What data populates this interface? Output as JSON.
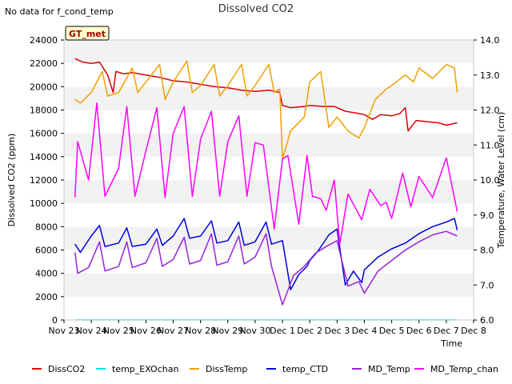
{
  "title": "Dissolved CO2",
  "note": "No data for f_cond_temp",
  "badge": "GT_met",
  "chart_data": {
    "type": "line",
    "title": "Dissolved CO2",
    "xlabel": "Time",
    "ylabel": "Dissolved CO2 (ppm)",
    "y2label": "Temperature, Water Level (cm)",
    "x_ticks": [
      "Nov 23",
      "Nov 24",
      "Nov 25",
      "Nov 26",
      "Nov 27",
      "Nov 28",
      "Nov 29",
      "Nov 30",
      "Dec 1",
      "Dec 2",
      "Dec 3",
      "Dec 4",
      "Dec 5",
      "Dec 6",
      "Dec 7",
      "Dec 8"
    ],
    "xlim": [
      0,
      15
    ],
    "ylim": [
      0,
      24000
    ],
    "y_ticks": [
      0,
      2000,
      4000,
      6000,
      8000,
      10000,
      12000,
      14000,
      16000,
      18000,
      20000,
      22000,
      24000
    ],
    "y2lim": [
      6.0,
      14.0
    ],
    "y2_ticks": [
      "6.0",
      "7.0",
      "8.0",
      "9.0",
      "10.0",
      "11.0",
      "12.0",
      "13.0",
      "14.0"
    ],
    "grid": "horizontal bands",
    "legend_position": "bottom",
    "series": [
      {
        "name": "DissCO2",
        "axis": "left",
        "color": "#dd0000",
        "x": [
          0.4,
          0.7,
          1.0,
          1.3,
          1.6,
          1.8,
          1.9,
          2.2,
          2.5,
          3.0,
          3.5,
          4.0,
          4.5,
          5.0,
          5.5,
          6.0,
          6.5,
          7.0,
          7.5,
          7.9,
          8.0,
          8.3,
          8.8,
          9.0,
          9.5,
          9.9,
          10.3,
          10.8,
          11.0,
          11.3,
          11.6,
          12.0,
          12.3,
          12.5,
          12.6,
          12.9,
          13.3,
          13.7,
          14.0,
          14.4
        ],
        "y": [
          22400,
          22100,
          22000,
          22100,
          21000,
          19500,
          21300,
          21100,
          21200,
          21000,
          20800,
          20500,
          20400,
          20200,
          20000,
          19900,
          19700,
          19600,
          19700,
          19500,
          18400,
          18200,
          18300,
          18400,
          18300,
          18300,
          17900,
          17700,
          17600,
          17200,
          17600,
          17500,
          17700,
          18200,
          16200,
          17100,
          17000,
          16900,
          16700,
          16900
        ]
      },
      {
        "name": "temp_EXOchan",
        "axis": "left",
        "color": "#00e5e5",
        "x": [
          0.4,
          14.4
        ],
        "y": [
          10,
          10
        ]
      },
      {
        "name": "DissTemp",
        "axis": "right",
        "color": "#f0a000",
        "x": [
          0.4,
          0.6,
          1.0,
          1.4,
          1.6,
          2.0,
          2.5,
          2.7,
          3.0,
          3.5,
          3.7,
          4.0,
          4.5,
          4.7,
          5.0,
          5.5,
          5.7,
          6.0,
          6.5,
          6.7,
          7.0,
          7.5,
          7.7,
          7.9,
          8.0,
          8.3,
          8.8,
          9.0,
          9.4,
          9.7,
          10.0,
          10.4,
          10.8,
          11.0,
          11.4,
          11.8,
          12.0,
          12.5,
          12.8,
          13.0,
          13.5,
          14.0,
          14.3,
          14.4
        ],
        "y": [
          12.3,
          12.2,
          12.5,
          13.1,
          12.4,
          12.5,
          13.2,
          12.5,
          12.8,
          13.3,
          12.3,
          12.8,
          13.4,
          12.5,
          12.7,
          13.3,
          12.4,
          12.7,
          13.3,
          12.4,
          12.7,
          13.3,
          12.5,
          12.6,
          10.6,
          11.4,
          11.8,
          12.8,
          13.1,
          11.5,
          11.8,
          11.4,
          11.2,
          11.5,
          12.3,
          12.6,
          12.7,
          13.0,
          12.8,
          13.2,
          12.9,
          13.3,
          13.2,
          12.5
        ]
      },
      {
        "name": "temp_CTD",
        "axis": "left",
        "color": "#0000dd",
        "x": [
          0.4,
          0.6,
          1.0,
          1.3,
          1.5,
          2.0,
          2.3,
          2.5,
          3.0,
          3.4,
          3.6,
          4.0,
          4.4,
          4.6,
          5.0,
          5.4,
          5.6,
          6.0,
          6.4,
          6.6,
          7.0,
          7.4,
          7.6,
          8.0,
          8.3,
          8.6,
          8.9,
          9.0,
          9.3,
          9.7,
          10.0,
          10.3,
          10.6,
          10.9,
          11.0,
          11.5,
          12.0,
          12.5,
          13.0,
          13.5,
          14.0,
          14.3,
          14.4
        ],
        "y": [
          6500,
          5800,
          7200,
          8100,
          6300,
          6600,
          7900,
          6300,
          6500,
          7800,
          6400,
          7200,
          8700,
          7000,
          7200,
          8500,
          6600,
          6800,
          8400,
          6400,
          6700,
          8400,
          6500,
          6800,
          2600,
          3900,
          4600,
          5100,
          5900,
          7300,
          7800,
          3000,
          4200,
          3200,
          4300,
          5400,
          6100,
          6600,
          7400,
          8000,
          8400,
          8700,
          7700
        ]
      },
      {
        "name": "MD_Temp",
        "axis": "left",
        "color": "#9922dd",
        "x": [
          0.4,
          0.5,
          0.9,
          1.3,
          1.5,
          2.0,
          2.3,
          2.5,
          3.0,
          3.4,
          3.6,
          4.0,
          4.4,
          4.6,
          5.0,
          5.4,
          5.6,
          6.0,
          6.4,
          6.6,
          7.0,
          7.4,
          7.6,
          8.0,
          8.4,
          8.8,
          9.2,
          9.6,
          10.0,
          10.4,
          10.8,
          11.0,
          11.5,
          12.0,
          12.5,
          13.0,
          13.5,
          14.0,
          14.4
        ],
        "y": [
          5800,
          4000,
          4500,
          6700,
          4200,
          4600,
          6700,
          4500,
          4900,
          7000,
          4600,
          5200,
          7100,
          4800,
          5100,
          7400,
          4700,
          5000,
          7200,
          4800,
          5400,
          7400,
          4600,
          1300,
          3800,
          4600,
          5700,
          6300,
          6800,
          2900,
          3300,
          2300,
          4200,
          5100,
          6000,
          6700,
          7300,
          7600,
          7200
        ]
      },
      {
        "name": "MD_Temp_chan",
        "axis": "left",
        "color": "#ff00ff",
        "x": [
          0.4,
          0.5,
          0.9,
          1.2,
          1.5,
          2.0,
          2.3,
          2.6,
          3.0,
          3.4,
          3.7,
          4.0,
          4.4,
          4.7,
          5.0,
          5.4,
          5.7,
          6.0,
          6.4,
          6.7,
          7.0,
          7.3,
          7.7,
          8.0,
          8.2,
          8.6,
          8.9,
          9.1,
          9.4,
          9.6,
          9.9,
          10.1,
          10.4,
          10.7,
          10.9,
          11.2,
          11.6,
          11.8,
          12.0,
          12.4,
          12.7,
          13.0,
          13.5,
          14.0,
          14.4
        ],
        "y": [
          10500,
          15300,
          12000,
          18600,
          10600,
          13000,
          18300,
          10600,
          14500,
          18200,
          10500,
          16000,
          18300,
          10600,
          15500,
          17900,
          10600,
          15300,
          17500,
          10600,
          15200,
          15000,
          7800,
          13800,
          14100,
          8200,
          14100,
          10600,
          10400,
          9400,
          12000,
          6500,
          10800,
          9500,
          8600,
          11200,
          9800,
          10100,
          8700,
          12600,
          9700,
          12300,
          10500,
          13900,
          9300
        ]
      }
    ]
  }
}
